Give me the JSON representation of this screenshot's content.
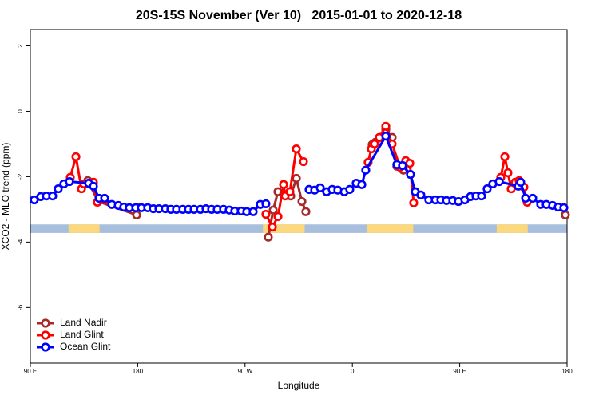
{
  "chart_data": {
    "type": "line",
    "title": "20S-15S November (Ver 10)   2015-01-01 to 2020-12-18",
    "x_label": "Longitude",
    "y_label": "XCO2 - MLO trend (ppm)",
    "xlim": [
      90,
      540
    ],
    "ylim": [
      -7.7,
      2.5
    ],
    "xticks": [
      {
        "value": 90,
        "label": "90 E"
      },
      {
        "value": 180,
        "label": "180"
      },
      {
        "value": 270,
        "label": "90 W"
      },
      {
        "value": 360,
        "label": "0"
      },
      {
        "value": 450,
        "label": "90 E"
      },
      {
        "value": 540,
        "label": "180"
      }
    ],
    "yticks": [
      2,
      0,
      -2,
      -4,
      -6
    ],
    "legend": "bottomleft",
    "surface_mask": {
      "ylim": [
        -3.72,
        -3.46
      ],
      "ocean_color": "#a8bedd",
      "land_color": "#fbd87e",
      "land": [
        [
          122,
          148
        ],
        [
          285,
          320
        ],
        [
          372,
          411
        ],
        [
          481,
          507
        ]
      ]
    },
    "series": [
      {
        "name": "Land Nadir",
        "color": "#a52a2a",
        "x": [
          138.2,
          146.9,
          179.1,
          null,
          289.5,
          293.6,
          297.6,
          302.3,
          308.3,
          313.0,
          317.7,
          321.0,
          null,
          376.6,
          379.3,
          383.3,
          388.0,
          393.3,
          397.3,
          402.7,
          null,
          538.6
        ],
        "values": [
          -2.12,
          -2.76,
          -3.17,
          null,
          -3.85,
          -3.02,
          -2.46,
          -2.54,
          -2.59,
          -2.05,
          -2.76,
          -3.07,
          null,
          -1.02,
          -0.95,
          -0.8,
          -0.56,
          -0.8,
          -1.68,
          -1.8,
          null,
          -3.17
        ]
      },
      {
        "name": "Land Glint",
        "color": "#ff0000",
        "x": [
          123.5,
          128.2,
          132.9,
          134.9,
          142.9,
          146.2,
          181.1,
          null,
          287.5,
          292.9,
          297.6,
          302.3,
          303.6,
          307.6,
          313.0,
          319.0,
          null,
          373.2,
          375.9,
          378.6,
          382.6,
          388.0,
          393.3,
          400.0,
          404.7,
          408.1,
          411.4,
          null,
          484.4,
          487.8,
          490.4,
          493.1,
          496.5,
          499.8,
          503.8,
          506.5
        ],
        "values": [
          -2.02,
          -1.39,
          -2.37,
          -2.22,
          -2.17,
          -2.78,
          -2.93,
          null,
          -3.15,
          -3.54,
          -3.22,
          -2.24,
          -2.59,
          -2.46,
          -1.15,
          -1.54,
          null,
          -1.56,
          -1.15,
          -1.0,
          -0.8,
          -0.46,
          -1.0,
          -1.71,
          -1.51,
          -1.59,
          -2.8,
          null,
          -2.02,
          -1.39,
          -1.88,
          -2.37,
          -2.17,
          -2.12,
          -2.32,
          -2.78
        ]
      },
      {
        "name": "Ocean Glint",
        "color": "#0000ff",
        "x": [
          93.3,
          98.7,
          103.4,
          108.7,
          113.4,
          118.1,
          122.8,
          138.9,
          142.9,
          147.6,
          152.3,
          158.3,
          163.7,
          168.3,
          173.0,
          178.4,
          183.1,
          188.4,
          193.1,
          197.8,
          203.2,
          207.8,
          212.5,
          217.9,
          222.6,
          227.3,
          232.6,
          237.3,
          242.0,
          246.7,
          252.0,
          256.7,
          261.4,
          266.8,
          271.5,
          276.8,
          282.8,
          287.5,
          null,
          323.7,
          328.4,
          333.1,
          338.4,
          343.1,
          347.8,
          353.2,
          357.8,
          363.2,
          367.9,
          371.2,
          388.0,
          397.3,
          402.0,
          408.7,
          412.7,
          417.4,
          424.1,
          429.5,
          434.2,
          438.9,
          444.2,
          448.9,
          454.3,
          459.0,
          463.6,
          468.3,
          473.0,
          477.7,
          483.1,
          499.1,
          501.1,
          505.2,
          511.2,
          517.9,
          522.6,
          527.9,
          532.6,
          537.3
        ],
        "values": [
          -2.71,
          -2.61,
          -2.59,
          -2.59,
          -2.37,
          -2.22,
          -2.15,
          -2.2,
          -2.29,
          -2.66,
          -2.66,
          -2.85,
          -2.88,
          -2.93,
          -2.95,
          -2.95,
          -2.95,
          -2.95,
          -2.98,
          -2.98,
          -2.98,
          -3.0,
          -3.0,
          -3.0,
          -3.0,
          -3.0,
          -3.0,
          -2.98,
          -3.0,
          -3.0,
          -3.0,
          -3.02,
          -3.05,
          -3.05,
          -3.07,
          -3.07,
          -2.85,
          -2.83,
          null,
          -2.39,
          -2.41,
          -2.34,
          -2.46,
          -2.39,
          -2.41,
          -2.46,
          -2.39,
          -2.2,
          -2.24,
          -1.8,
          -0.76,
          -1.63,
          -1.66,
          -1.93,
          -2.46,
          -2.56,
          -2.71,
          -2.71,
          -2.71,
          -2.73,
          -2.73,
          -2.76,
          -2.71,
          -2.61,
          -2.59,
          -2.59,
          -2.37,
          -2.22,
          -2.15,
          -2.29,
          -2.17,
          -2.66,
          -2.66,
          -2.85,
          -2.85,
          -2.88,
          -2.93,
          -2.95
        ]
      }
    ]
  }
}
